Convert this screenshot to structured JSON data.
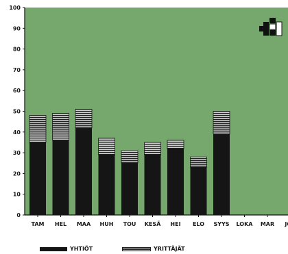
{
  "chart_data": {
    "type": "bar",
    "stacked": true,
    "categories": [
      "TAM",
      "HEL",
      "MAA",
      "HUH",
      "TOU",
      "KESÄ",
      "HEI",
      "ELO",
      "SYYS",
      "LOKA",
      "MAR",
      "JOU"
    ],
    "series": [
      {
        "name": "YHTIÖT",
        "values": [
          35,
          36,
          42,
          29,
          25,
          29,
          32,
          23,
          39,
          null,
          null,
          null
        ],
        "color": "#151515"
      },
      {
        "name": "YRITTÄJÄT",
        "values": [
          13,
          13,
          9,
          8,
          6,
          6,
          4,
          5,
          11,
          null,
          null,
          null
        ],
        "color": "striped"
      }
    ],
    "ylim": [
      0,
      100
    ],
    "yticks": [
      "0",
      "10",
      "20",
      "30",
      "40",
      "50",
      "60",
      "70",
      "80",
      "90",
      "100"
    ],
    "plot_background": "#76a86e",
    "grid": false,
    "legend": "bottom"
  },
  "colors": {
    "plot_bg": "#76a86e",
    "bar_dark": "#151515",
    "stripe_light": "#cfcfcf"
  },
  "icons": {
    "logo": "puzzle-cross-logo"
  }
}
